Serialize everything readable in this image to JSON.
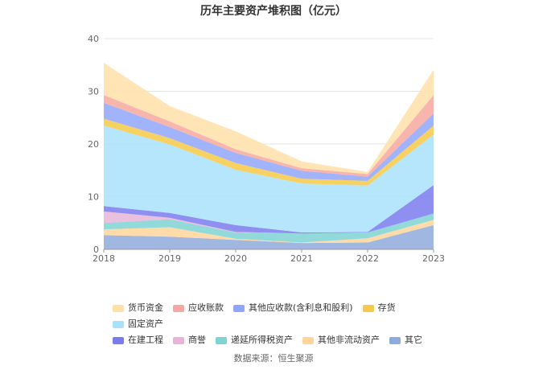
{
  "chart_data": {
    "type": "area",
    "stacked": true,
    "title": "历年主要资产堆积图（亿元）",
    "xlabel": "",
    "ylabel": "",
    "x": [
      "2018",
      "2019",
      "2020",
      "2021",
      "2022",
      "2023"
    ],
    "ylim": [
      0,
      40
    ],
    "yticks": [
      0,
      10,
      20,
      30,
      40
    ],
    "grid": true,
    "legend_position": "bottom",
    "series": [
      {
        "name": "其它",
        "color": "#8faadc",
        "values": [
          2.7,
          2.4,
          1.8,
          1.2,
          1.3,
          4.6
        ]
      },
      {
        "name": "其他非流动资产",
        "color": "#ffd59a",
        "values": [
          1.1,
          1.8,
          0.2,
          0.1,
          0.8,
          1.0
        ]
      },
      {
        "name": "递延所得税资产",
        "color": "#7fd3d3",
        "values": [
          1.2,
          1.5,
          1.2,
          1.7,
          1.1,
          1.2
        ]
      },
      {
        "name": "商誉",
        "color": "#e8b4d8",
        "values": [
          2.2,
          0.3,
          0.1,
          0.0,
          0.0,
          0.0
        ]
      },
      {
        "name": "在建工程",
        "color": "#7b7bf0",
        "values": [
          1.0,
          0.9,
          1.3,
          0.2,
          0.1,
          5.4
        ]
      },
      {
        "name": "固定资产",
        "color": "#a8e2fa",
        "values": [
          15.3,
          13.0,
          10.5,
          9.3,
          8.8,
          9.6
        ]
      },
      {
        "name": "存货",
        "color": "#f7c948",
        "values": [
          1.3,
          1.2,
          1.3,
          0.9,
          0.9,
          1.7
        ]
      },
      {
        "name": "其他应收款(含利息和股利)",
        "color": "#8fa6fa",
        "values": [
          3.0,
          2.1,
          1.9,
          1.5,
          0.8,
          2.3
        ]
      },
      {
        "name": "应收账款",
        "color": "#f7a8a0",
        "values": [
          1.5,
          1.1,
          0.7,
          0.5,
          0.5,
          3.5
        ]
      },
      {
        "name": "货币资金",
        "color": "#ffe0a8",
        "values": [
          6.1,
          2.9,
          3.4,
          1.3,
          0.4,
          4.8
        ]
      }
    ],
    "legend_order": [
      "货币资金",
      "应收账款",
      "其他应收款(含利息和股利)",
      "存货",
      "固定资产",
      "在建工程",
      "商誉",
      "递延所得税资产",
      "其他非流动资产",
      "其它"
    ]
  },
  "source_note": "数据来源：恒生聚源"
}
